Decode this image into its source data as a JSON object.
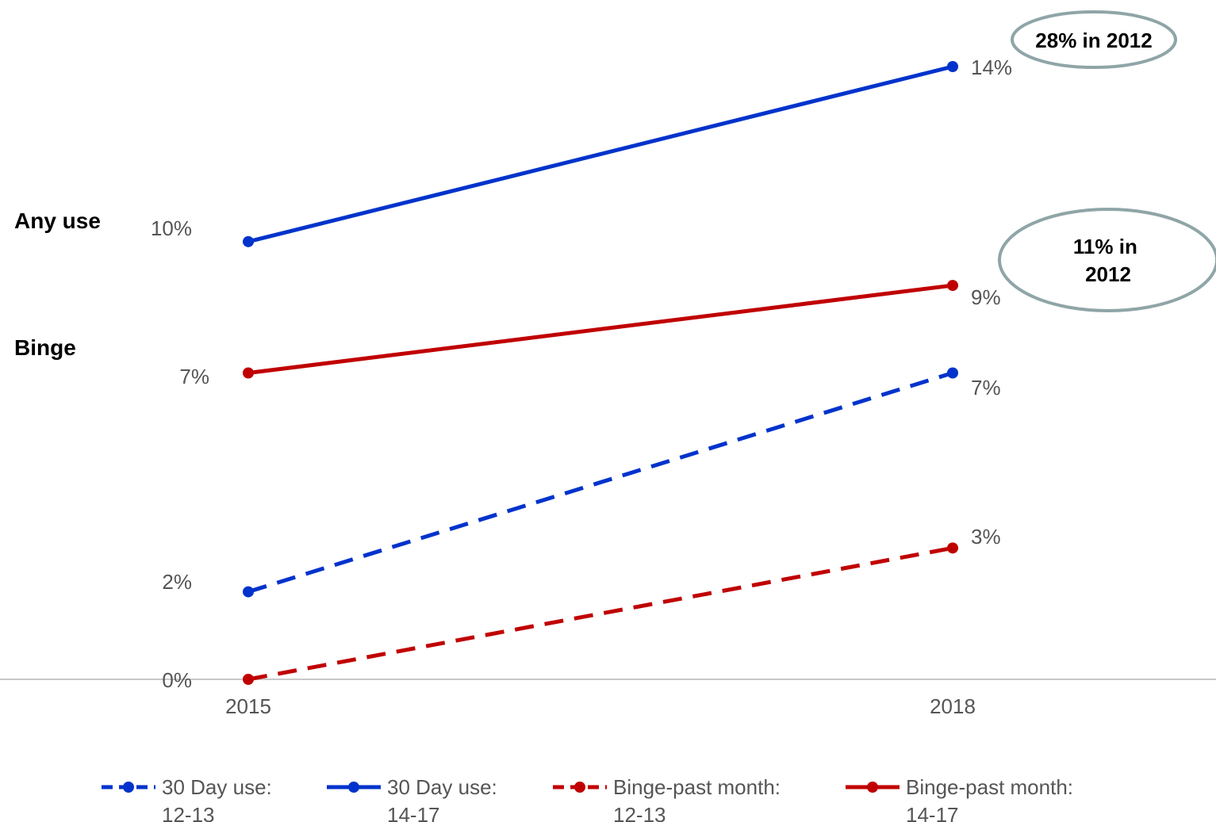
{
  "chart_data": {
    "type": "line",
    "x": [
      "2015",
      "2018"
    ],
    "series": [
      {
        "name": "30 Day use: 12-13",
        "values": [
          2,
          7
        ],
        "value_labels": [
          "2%",
          "7%"
        ],
        "color": "#0033cc",
        "dash": "dashed"
      },
      {
        "name": "30 Day use: 14-17",
        "values": [
          10,
          14
        ],
        "value_labels": [
          "10%",
          "14%"
        ],
        "color": "#0033cc",
        "dash": "solid"
      },
      {
        "name": "Binge-past month: 12-13",
        "values": [
          0,
          3
        ],
        "value_labels": [
          "0%",
          "3%"
        ],
        "color": "#c00000",
        "dash": "dashed"
      },
      {
        "name": "Binge-past month: 14-17",
        "values": [
          7,
          9
        ],
        "value_labels": [
          "7%",
          "9%"
        ],
        "color": "#c00000",
        "dash": "solid"
      }
    ],
    "ylim": [
      0,
      14
    ],
    "grid": false,
    "legend_position": "bottom",
    "group_labels": {
      "any_use": "Any use",
      "binge": "Binge"
    },
    "annotations": [
      {
        "text": "28% in 2012",
        "series": "30 Day use: 14-17"
      },
      {
        "text": "11% in 2012",
        "series": "Binge-past month: 14-17"
      }
    ],
    "legend": [
      {
        "line1": "30 Day use:",
        "line2": "12-13"
      },
      {
        "line1": "30 Day use:",
        "line2": "14-17"
      },
      {
        "line1": "Binge-past month:",
        "line2": "12-13"
      },
      {
        "line1": "Binge-past month:",
        "line2": "14-17"
      }
    ]
  }
}
